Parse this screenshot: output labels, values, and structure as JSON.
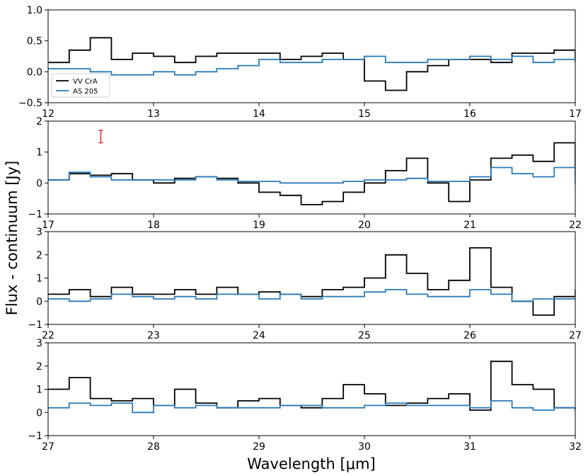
{
  "figure": {
    "ylabel": "Flux - continuum [Jy]",
    "xlabel": "Wavelength [μm]"
  },
  "colors": {
    "VV CrA": "#000000",
    "AS 205": "#2a7ab9",
    "errorbar": "#d62728"
  },
  "chart_data": [
    {
      "type": "line",
      "panel": 1,
      "xlim": [
        12,
        17
      ],
      "ylim": [
        -0.5,
        1.0
      ],
      "xticks": [
        12,
        13,
        14,
        15,
        16,
        17
      ],
      "yticks": [
        -0.5,
        0.0,
        0.5,
        1.0
      ],
      "ytick_labels": [
        "−0.5",
        "0.0",
        "0.5",
        "1.0"
      ],
      "legend": {
        "position": "lower-left",
        "entries": [
          "VV CrA",
          "AS 205"
        ]
      },
      "series": [
        {
          "name": "VV CrA",
          "x": [
            12.0,
            12.2,
            12.4,
            12.6,
            12.8,
            13.0,
            13.2,
            13.4,
            13.6,
            13.8,
            14.0,
            14.2,
            14.4,
            14.6,
            14.8,
            15.0,
            15.2,
            15.4,
            15.6,
            15.8,
            16.0,
            16.2,
            16.4,
            16.6,
            16.8,
            17.0
          ],
          "y": [
            0.15,
            0.35,
            0.55,
            0.2,
            0.3,
            0.25,
            0.15,
            0.25,
            0.3,
            0.3,
            0.3,
            0.2,
            0.25,
            0.3,
            0.2,
            -0.15,
            -0.3,
            0.0,
            0.1,
            0.2,
            0.2,
            0.15,
            0.3,
            0.3,
            0.35,
            0.2
          ]
        },
        {
          "name": "AS 205",
          "x": [
            12.0,
            12.2,
            12.4,
            12.6,
            12.8,
            13.0,
            13.2,
            13.4,
            13.6,
            13.8,
            14.0,
            14.2,
            14.4,
            14.6,
            14.8,
            15.0,
            15.2,
            15.4,
            15.6,
            15.8,
            16.0,
            16.2,
            16.4,
            16.6,
            16.8,
            17.0
          ],
          "y": [
            0.05,
            0.05,
            0.0,
            -0.05,
            -0.05,
            0.0,
            -0.05,
            0.0,
            0.05,
            0.1,
            0.2,
            0.15,
            0.15,
            0.2,
            0.2,
            0.25,
            0.15,
            0.15,
            0.2,
            0.2,
            0.25,
            0.2,
            0.25,
            0.15,
            0.2,
            0.15
          ]
        }
      ]
    },
    {
      "type": "line",
      "panel": 2,
      "xlim": [
        17,
        22
      ],
      "ylim": [
        -1,
        2
      ],
      "xticks": [
        17,
        18,
        19,
        20,
        21,
        22
      ],
      "yticks": [
        -1,
        0,
        1,
        2
      ],
      "ytick_labels": [
        "−1",
        "0",
        "1",
        "2"
      ],
      "errorbar": {
        "x": 17.5,
        "y": 1.5,
        "yerr": 0.2
      },
      "series": [
        {
          "name": "VV CrA",
          "x": [
            17.0,
            17.2,
            17.4,
            17.6,
            17.8,
            18.0,
            18.2,
            18.4,
            18.6,
            18.8,
            19.0,
            19.2,
            19.4,
            19.6,
            19.8,
            20.0,
            20.2,
            20.4,
            20.6,
            20.8,
            21.0,
            21.2,
            21.4,
            21.6,
            21.8,
            22.0
          ],
          "y": [
            0.1,
            0.3,
            0.25,
            0.3,
            0.1,
            0.0,
            0.15,
            0.2,
            0.15,
            0.0,
            -0.3,
            -0.4,
            -0.7,
            -0.6,
            -0.3,
            0.0,
            0.4,
            0.8,
            0.0,
            -0.6,
            0.1,
            0.8,
            0.9,
            0.7,
            1.3,
            0.2
          ]
        },
        {
          "name": "AS 205",
          "x": [
            17.0,
            17.2,
            17.4,
            17.6,
            17.8,
            18.0,
            18.2,
            18.4,
            18.6,
            18.8,
            19.0,
            19.2,
            19.4,
            19.6,
            19.8,
            20.0,
            20.2,
            20.4,
            20.6,
            20.8,
            21.0,
            21.2,
            21.4,
            21.6,
            21.8,
            22.0
          ],
          "y": [
            0.1,
            0.35,
            0.2,
            0.1,
            0.1,
            0.1,
            0.1,
            0.2,
            0.1,
            0.05,
            0.05,
            0.0,
            0.0,
            0.0,
            0.05,
            0.1,
            0.1,
            0.15,
            0.05,
            0.05,
            0.2,
            0.5,
            0.3,
            0.2,
            0.5,
            -0.05
          ]
        }
      ]
    },
    {
      "type": "line",
      "panel": 3,
      "xlim": [
        22,
        27
      ],
      "ylim": [
        -1,
        3
      ],
      "xticks": [
        22,
        23,
        24,
        25,
        26,
        27
      ],
      "yticks": [
        -1,
        0,
        1,
        2,
        3
      ],
      "ytick_labels": [
        "−1",
        "0",
        "1",
        "2",
        "3"
      ],
      "series": [
        {
          "name": "VV CrA",
          "x": [
            22.0,
            22.2,
            22.4,
            22.6,
            22.8,
            23.0,
            23.2,
            23.4,
            23.6,
            23.8,
            24.0,
            24.2,
            24.4,
            24.6,
            24.8,
            25.0,
            25.2,
            25.4,
            25.6,
            25.8,
            26.0,
            26.2,
            26.4,
            26.6,
            26.8,
            27.0
          ],
          "y": [
            0.3,
            0.5,
            0.2,
            0.6,
            0.3,
            0.3,
            0.5,
            0.3,
            0.6,
            0.3,
            0.4,
            0.3,
            0.2,
            0.5,
            0.6,
            1.0,
            2.0,
            1.2,
            0.5,
            0.9,
            2.3,
            0.6,
            0.0,
            -0.6,
            0.2,
            0.5
          ]
        },
        {
          "name": "AS 205",
          "x": [
            22.0,
            22.2,
            22.4,
            22.6,
            22.8,
            23.0,
            23.2,
            23.4,
            23.6,
            23.8,
            24.0,
            24.2,
            24.4,
            24.6,
            24.8,
            25.0,
            25.2,
            25.4,
            25.6,
            25.8,
            26.0,
            26.2,
            26.4,
            26.6,
            26.8,
            27.0
          ],
          "y": [
            0.1,
            0.0,
            0.1,
            0.3,
            0.2,
            0.1,
            0.2,
            0.1,
            0.3,
            0.3,
            0.1,
            0.3,
            0.1,
            0.2,
            0.2,
            0.4,
            0.5,
            0.3,
            0.2,
            0.2,
            0.5,
            0.3,
            0.0,
            0.1,
            0.1,
            0.1
          ]
        }
      ]
    },
    {
      "type": "line",
      "panel": 4,
      "xlim": [
        27,
        32
      ],
      "ylim": [
        -1,
        3
      ],
      "xticks": [
        27,
        28,
        29,
        30,
        31,
        32
      ],
      "yticks": [
        -1,
        0,
        1,
        2,
        3
      ],
      "ytick_labels": [
        "−1",
        "0",
        "1",
        "2",
        "3"
      ],
      "series": [
        {
          "name": "VV CrA",
          "x": [
            27.0,
            27.2,
            27.4,
            27.6,
            27.8,
            28.0,
            28.2,
            28.4,
            28.6,
            28.8,
            29.0,
            29.2,
            29.4,
            29.6,
            29.8,
            30.0,
            30.2,
            30.4,
            30.6,
            30.8,
            31.0,
            31.2,
            31.4,
            31.6,
            31.8,
            32.0
          ],
          "y": [
            1.0,
            1.5,
            0.6,
            0.5,
            0.6,
            0.3,
            1.0,
            0.4,
            0.2,
            0.5,
            0.6,
            0.3,
            0.2,
            0.6,
            1.2,
            0.8,
            0.3,
            0.4,
            0.6,
            0.8,
            0.1,
            2.2,
            1.2,
            1.0,
            0.2,
            0.1
          ]
        },
        {
          "name": "AS 205",
          "x": [
            27.0,
            27.2,
            27.4,
            27.6,
            27.8,
            28.0,
            28.2,
            28.4,
            28.6,
            28.8,
            29.0,
            29.2,
            29.4,
            29.6,
            29.8,
            30.0,
            30.2,
            30.4,
            30.6,
            30.8,
            31.0,
            31.2,
            31.4,
            31.6,
            31.8,
            32.0
          ],
          "y": [
            0.2,
            0.4,
            0.3,
            0.4,
            0.0,
            0.3,
            0.2,
            0.3,
            0.2,
            0.2,
            0.2,
            0.3,
            0.3,
            0.2,
            0.2,
            0.3,
            0.4,
            0.3,
            0.3,
            0.3,
            0.2,
            0.5,
            0.2,
            0.1,
            0.2,
            0.2
          ]
        }
      ]
    }
  ]
}
